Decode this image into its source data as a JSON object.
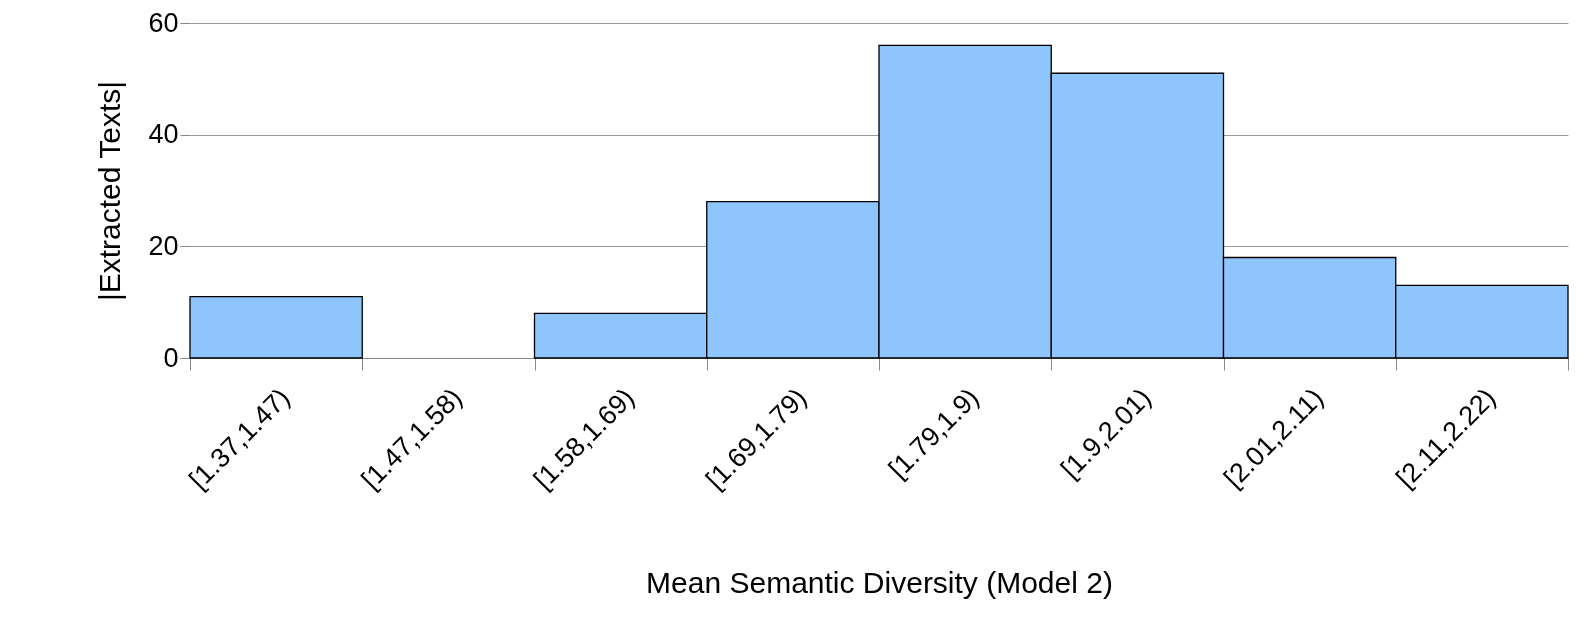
{
  "chart_data": {
    "type": "bar",
    "xlabel": "Mean Semantic Diversity (Model 2)",
    "ylabel": "|Extracted Texts|",
    "categories": [
      "[1.37,1.47)",
      "[1.47,1.58)",
      "[1.58,1.69)",
      "[1.69,1.79)",
      "[1.79,1.9)",
      "[1.9,2.01)",
      "[2.01,2.11)",
      "[2.11,2.22)"
    ],
    "values": [
      11,
      0,
      8,
      28,
      56,
      51,
      18,
      13
    ],
    "color": "#8ec5fc",
    "ylim": [
      0,
      60
    ],
    "yticks": [
      0,
      20,
      40,
      60
    ],
    "grid": "y"
  }
}
